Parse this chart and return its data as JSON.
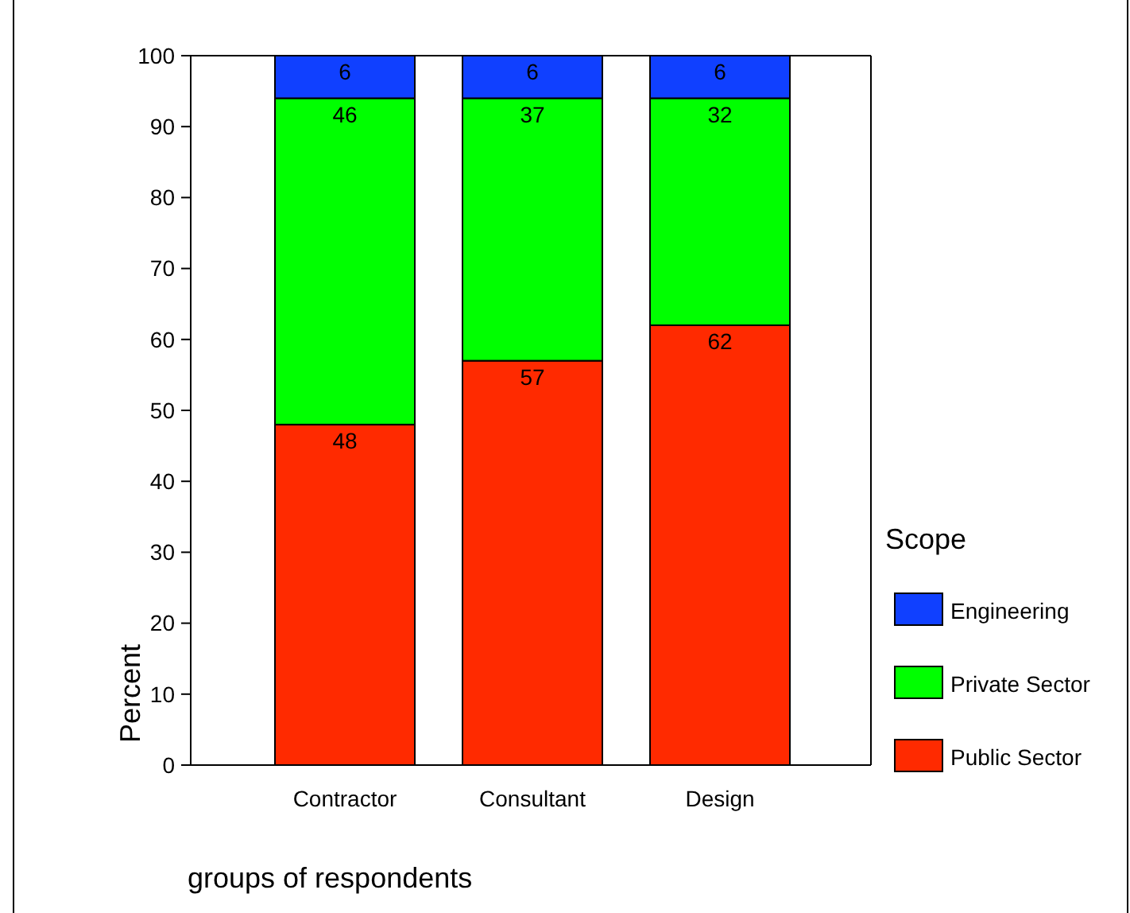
{
  "chart_data": {
    "type": "bar",
    "stacked": true,
    "categories": [
      "Contractor",
      "Consultant",
      "Design"
    ],
    "series": [
      {
        "name": "Public Sector",
        "color": "#ff2a00",
        "values": [
          48,
          57,
          62
        ]
      },
      {
        "name": "Private Sector",
        "color": "#00ff00",
        "values": [
          46,
          37,
          32
        ]
      },
      {
        "name": "Engineering",
        "color": "#1040ff",
        "values": [
          6,
          6,
          6
        ]
      }
    ],
    "ylim": [
      0,
      100
    ],
    "yticks": [
      0,
      10,
      20,
      30,
      40,
      50,
      60,
      70,
      80,
      90,
      100
    ],
    "xlabel": "groups of respondents",
    "ylabel": "Percent",
    "legend_title": "Scope",
    "legend": "right",
    "data_labels": true,
    "grid": false
  }
}
